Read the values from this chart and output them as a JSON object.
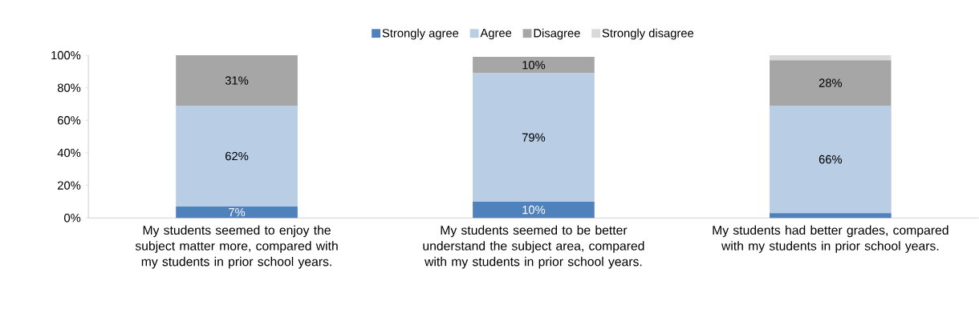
{
  "chart_data": {
    "type": "bar",
    "stacked": true,
    "categories": [
      "My students seemed to enjoy the subject matter more, compared with my students in prior school years.",
      "My students seemed to be better understand the subject area, compared with my students in prior school years.",
      "My students had better grades, compared with my students in prior school years."
    ],
    "series": [
      {
        "name": "Strongly agree",
        "color": "#4f81bd",
        "values": [
          7,
          10,
          3
        ],
        "value_labels": [
          "7%",
          "10%",
          null
        ]
      },
      {
        "name": "Agree",
        "color": "#b9cde5",
        "values": [
          62,
          79,
          66
        ],
        "value_labels": [
          "62%",
          "79%",
          "66%"
        ]
      },
      {
        "name": "Disagree",
        "color": "#a6a6a6",
        "values": [
          31,
          10,
          28
        ],
        "value_labels": [
          "31%",
          "10%",
          "28%"
        ]
      },
      {
        "name": "Strongly disagree",
        "color": "#d9d9d9",
        "values": [
          0,
          0,
          3
        ],
        "value_labels": [
          null,
          null,
          null
        ]
      }
    ],
    "ylim": [
      0,
      100
    ],
    "yticks": [
      {
        "value": 0,
        "label": "0%"
      },
      {
        "value": 20,
        "label": "20%"
      },
      {
        "value": 40,
        "label": "40%"
      },
      {
        "value": 60,
        "label": "60%"
      },
      {
        "value": 80,
        "label": "80%"
      },
      {
        "value": 100,
        "label": "100%"
      }
    ],
    "grid": false,
    "legend": "top"
  }
}
